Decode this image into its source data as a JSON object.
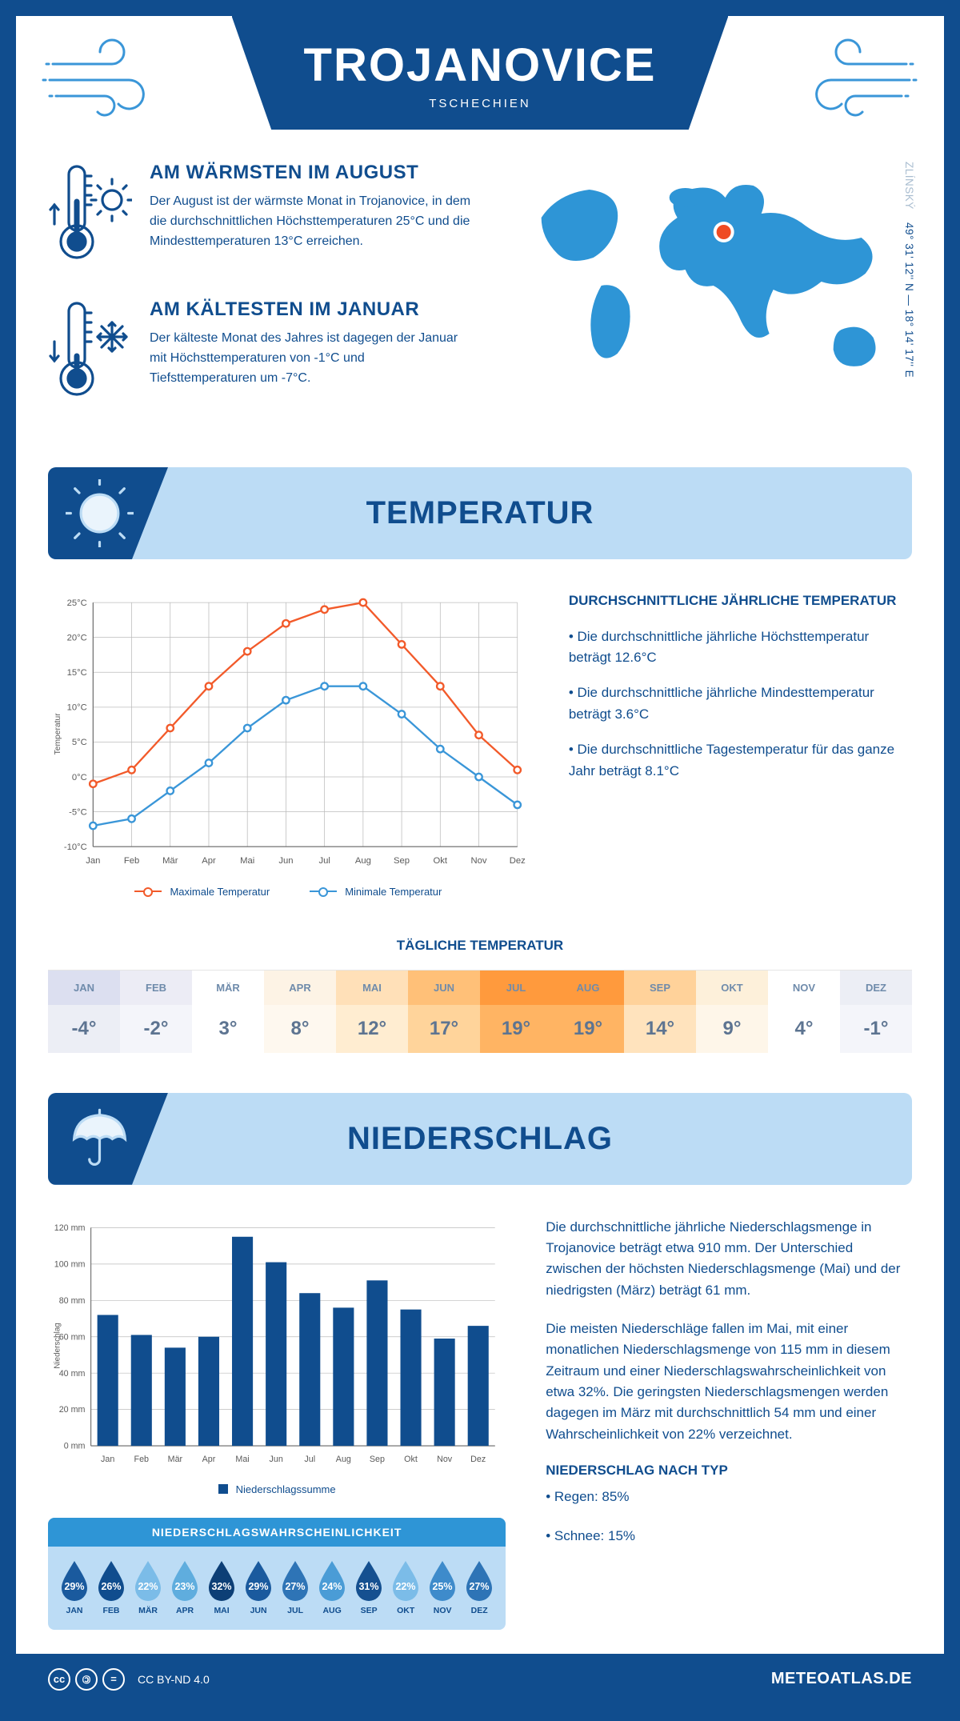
{
  "header": {
    "title": "TROJANOVICE",
    "subtitle": "TSCHECHIEN"
  },
  "coords": {
    "region": "ZLÍNSKÝ",
    "text": "49° 31' 12'' N — 18° 14' 17'' E"
  },
  "facts": {
    "warm": {
      "title": "AM WÄRMSTEN IM AUGUST",
      "body": "Der August ist der wärmste Monat in Trojanovice, in dem die durchschnittlichen Höchsttemperaturen 25°C und die Mindesttemperaturen 13°C erreichen."
    },
    "cold": {
      "title": "AM KÄLTESTEN IM JANUAR",
      "body": "Der kälteste Monat des Jahres ist dagegen der Januar mit Höchsttemperaturen von -1°C und Tiefsttemperaturen um -7°C."
    }
  },
  "sections": {
    "temp": "TEMPERATUR",
    "precip": "NIEDERSCHLAG"
  },
  "months": [
    "Jan",
    "Feb",
    "Mär",
    "Apr",
    "Mai",
    "Jun",
    "Jul",
    "Aug",
    "Sep",
    "Okt",
    "Nov",
    "Dez"
  ],
  "months_upper": [
    "JAN",
    "FEB",
    "MÄR",
    "APR",
    "MAI",
    "JUN",
    "JUL",
    "AUG",
    "SEP",
    "OKT",
    "NOV",
    "DEZ"
  ],
  "temp_chart": {
    "type": "line",
    "y_label": "Temperatur",
    "ylim": [
      -10,
      25
    ],
    "ytick_step": 5,
    "max_label": "Maximale Temperatur",
    "min_label": "Minimale Temperatur",
    "max_color": "#f25a2a",
    "min_color": "#3a96d8",
    "grid_color": "#bcbcbc",
    "max_values": [
      -1,
      1,
      7,
      13,
      18,
      22,
      24,
      25,
      19,
      13,
      6,
      1
    ],
    "min_values": [
      -7,
      -6,
      -2,
      2,
      7,
      11,
      13,
      13,
      9,
      4,
      0,
      -4
    ]
  },
  "temp_text": {
    "heading": "DURCHSCHNITTLICHE JÄHRLICHE TEMPERATUR",
    "b1": "• Die durchschnittliche jährliche Höchsttemperatur beträgt 12.6°C",
    "b2": "• Die durchschnittliche jährliche Mindesttemperatur beträgt 3.6°C",
    "b3": "• Die durchschnittliche Tagestemperatur für das ganze Jahr beträgt 8.1°C"
  },
  "daily": {
    "title": "TÄGLICHE TEMPERATUR",
    "values": [
      "-4°",
      "-2°",
      "3°",
      "8°",
      "12°",
      "17°",
      "19°",
      "19°",
      "14°",
      "9°",
      "4°",
      "-1°"
    ],
    "header_colors": [
      "#dcdff0",
      "#ececf5",
      "#ffffff",
      "#fdf3e5",
      "#ffe0b8",
      "#ffc078",
      "#ff9a3d",
      "#ff9a3d",
      "#ffd29a",
      "#fdf0da",
      "#ffffff",
      "#eceef5"
    ],
    "cell_colors": [
      "#eceef5",
      "#f4f5fa",
      "#ffffff",
      "#fef8ef",
      "#ffedd1",
      "#ffd49b",
      "#ffb463",
      "#ffb463",
      "#ffe3bd",
      "#fef6e9",
      "#ffffff",
      "#f4f5fa"
    ]
  },
  "precip_chart": {
    "type": "bar",
    "y_label": "Niederschlag",
    "legend": "Niederschlagssumme",
    "ylim": [
      0,
      120
    ],
    "ytick_step": 20,
    "bar_color": "#104d8e",
    "grid_color": "#bcbcbc",
    "values": [
      72,
      61,
      54,
      60,
      115,
      101,
      84,
      76,
      91,
      75,
      59,
      66
    ]
  },
  "precip_text": {
    "p1": "Die durchschnittliche jährliche Niederschlagsmenge in Trojanovice beträgt etwa 910 mm. Der Unterschied zwischen der höchsten Niederschlagsmenge (Mai) und der niedrigsten (März) beträgt 61 mm.",
    "p2": "Die meisten Niederschläge fallen im Mai, mit einer monatlichen Niederschlagsmenge von 115 mm in diesem Zeitraum und einer Niederschlagswahrscheinlichkeit von etwa 32%. Die geringsten Niederschlagsmengen werden dagegen im März mit durchschnittlich 54 mm und einer Wahrscheinlichkeit von 22% verzeichnet.",
    "type_heading": "NIEDERSCHLAG NACH TYP",
    "type_b1": "• Regen: 85%",
    "type_b2": "• Schnee: 15%"
  },
  "prob": {
    "title": "NIEDERSCHLAGSWAHRSCHEINLICHKEIT",
    "values": [
      "29%",
      "26%",
      "22%",
      "23%",
      "32%",
      "29%",
      "27%",
      "24%",
      "31%",
      "22%",
      "25%",
      "27%"
    ],
    "colors": [
      "#1a5a9e",
      "#104d8e",
      "#7bbce8",
      "#5fadde",
      "#0d3f76",
      "#1a5a9e",
      "#2e74b6",
      "#4a9cd6",
      "#155090",
      "#7bbce8",
      "#3e8bcb",
      "#2e74b6"
    ]
  },
  "footer": {
    "license": "CC BY-ND 4.0",
    "site": "METEOATLAS.DE"
  }
}
